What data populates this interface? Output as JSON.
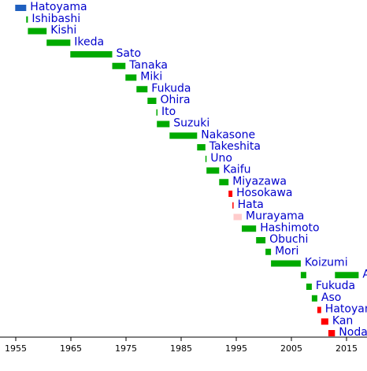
{
  "chart_data": {
    "type": "timeline",
    "title": "",
    "xlabel": "",
    "ylabel": "",
    "xlim": [
      1952,
      2020
    ],
    "xticks": [
      1955,
      1965,
      1975,
      1985,
      1995,
      2005,
      2015
    ],
    "xtick_labels": [
      "1955",
      "1965",
      "1975",
      "1985",
      "1995",
      "2005",
      "2015"
    ],
    "grid": false,
    "colors": {
      "Liberal Democratic": "#00aa00",
      "Democratic": "#ff0000",
      "Social Democratic": "#ffcccc",
      "Democratic (1954)": "#1f5fbf"
    },
    "series": [
      {
        "label": "Hatoyama",
        "start": 1954.9,
        "end": 1956.9,
        "color": "#1f5fbf"
      },
      {
        "label": "Ishibashi",
        "start": 1956.9,
        "end": 1957.2,
        "color": "#00aa00"
      },
      {
        "label": "Kishi",
        "start": 1957.2,
        "end": 1960.6,
        "color": "#00aa00"
      },
      {
        "label": "Ikeda",
        "start": 1960.6,
        "end": 1964.9,
        "color": "#00aa00"
      },
      {
        "label": "Sato",
        "start": 1964.9,
        "end": 1972.5,
        "color": "#00aa00"
      },
      {
        "label": "Tanaka",
        "start": 1972.5,
        "end": 1974.9,
        "color": "#00aa00"
      },
      {
        "label": "Miki",
        "start": 1974.9,
        "end": 1976.9,
        "color": "#00aa00"
      },
      {
        "label": "Fukuda",
        "start": 1976.9,
        "end": 1978.9,
        "color": "#00aa00"
      },
      {
        "label": "Ohira",
        "start": 1978.9,
        "end": 1980.5,
        "color": "#00aa00"
      },
      {
        "label": "Ito",
        "start": 1980.5,
        "end": 1980.6,
        "color": "#00aa00"
      },
      {
        "label": "Suzuki",
        "start": 1980.6,
        "end": 1982.9,
        "color": "#00aa00"
      },
      {
        "label": "Nakasone",
        "start": 1982.9,
        "end": 1987.9,
        "color": "#00aa00"
      },
      {
        "label": "Takeshita",
        "start": 1987.9,
        "end": 1989.4,
        "color": "#00aa00"
      },
      {
        "label": "Uno",
        "start": 1989.4,
        "end": 1989.6,
        "color": "#00aa00"
      },
      {
        "label": "Kaifu",
        "start": 1989.6,
        "end": 1991.9,
        "color": "#00aa00"
      },
      {
        "label": "Miyazawa",
        "start": 1991.9,
        "end": 1993.6,
        "color": "#00aa00"
      },
      {
        "label": "Hosokawa",
        "start": 1993.6,
        "end": 1994.3,
        "color": "#ff0000"
      },
      {
        "label": "Hata",
        "start": 1994.3,
        "end": 1994.5,
        "color": "#ff0000"
      },
      {
        "label": "Murayama",
        "start": 1994.5,
        "end": 1996.0,
        "color": "#ffcccc"
      },
      {
        "label": "Hashimoto",
        "start": 1996.0,
        "end": 1998.6,
        "color": "#00aa00"
      },
      {
        "label": "Obuchi",
        "start": 1998.6,
        "end": 2000.3,
        "color": "#00aa00"
      },
      {
        "label": "Mori",
        "start": 2000.3,
        "end": 2001.3,
        "color": "#00aa00"
      },
      {
        "label": "Koizumi",
        "start": 2001.3,
        "end": 2006.7,
        "color": "#00aa00"
      },
      {
        "label": "Abe",
        "start": 2006.7,
        "end": 2007.7,
        "color": "#00aa00"
      },
      {
        "label": "Abe",
        "start": 2012.9,
        "end": 2017.2,
        "color": "#00aa00"
      },
      {
        "label": "Fukuda",
        "start": 2007.7,
        "end": 2008.7,
        "color": "#00aa00"
      },
      {
        "label": "Aso",
        "start": 2008.7,
        "end": 2009.7,
        "color": "#00aa00"
      },
      {
        "label": "Hatoyama",
        "start": 2009.7,
        "end": 2010.4,
        "color": "#ff0000"
      },
      {
        "label": "Kan",
        "start": 2010.4,
        "end": 2011.7,
        "color": "#ff0000"
      },
      {
        "label": "Noda",
        "start": 2011.7,
        "end": 2012.9,
        "color": "#ff0000"
      }
    ]
  }
}
